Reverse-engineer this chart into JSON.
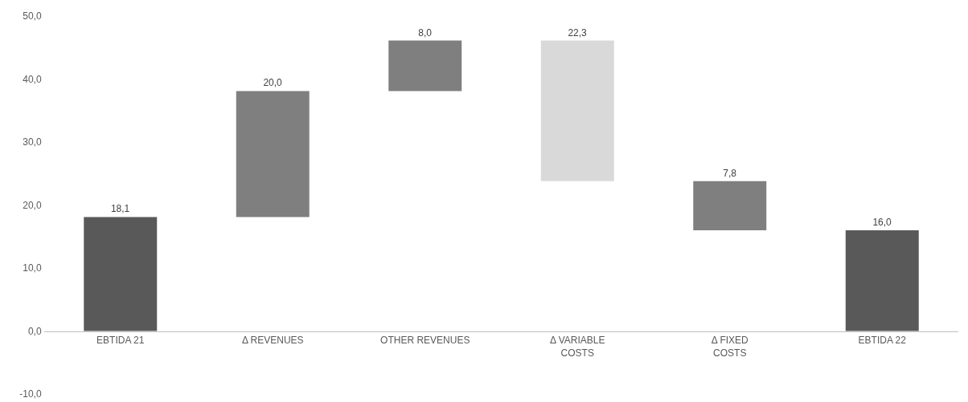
{
  "chart_data": {
    "type": "bar",
    "categories": [
      "EBTIDA 21",
      "Δ REVENUES",
      "OTHER REVENUES",
      "Δ VARIABLE\nCOSTS",
      "Δ FIXED\nCOSTS",
      "EBTIDA 22"
    ],
    "values": [
      18.1,
      20.0,
      8.0,
      22.3,
      7.8,
      16.0
    ],
    "base": [
      0,
      18.1,
      38.1,
      23.8,
      16.0,
      0
    ],
    "colors": [
      "#595959",
      "#7f7f7f",
      "#7f7f7f",
      "#d9d9d9",
      "#7f7f7f",
      "#595959"
    ],
    "value_labels": [
      "18,1",
      "20,0",
      "8,0",
      "22,3",
      "7,8",
      "16,0"
    ],
    "ylim": [
      -10,
      50
    ],
    "yticks": [
      {
        "value": -10,
        "label": "-10,0"
      },
      {
        "value": 0,
        "label": "0,0"
      },
      {
        "value": 10,
        "label": "10,0"
      },
      {
        "value": 20,
        "label": "20,0"
      },
      {
        "value": 30,
        "label": "30,0"
      },
      {
        "value": 40,
        "label": "40,0"
      },
      {
        "value": 50,
        "label": "50,0"
      }
    ],
    "grid": false,
    "legend": false
  }
}
